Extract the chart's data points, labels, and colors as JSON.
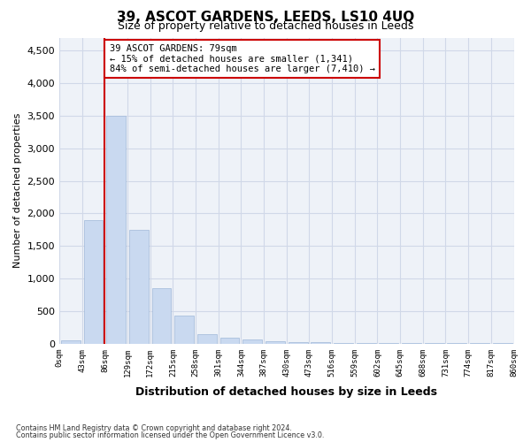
{
  "title": "39, ASCOT GARDENS, LEEDS, LS10 4UQ",
  "subtitle": "Size of property relative to detached houses in Leeds",
  "xlabel": "Distribution of detached houses by size in Leeds",
  "ylabel": "Number of detached properties",
  "footnote1": "Contains HM Land Registry data © Crown copyright and database right 2024.",
  "footnote2": "Contains public sector information licensed under the Open Government Licence v3.0.",
  "bar_color": "#c9d9f0",
  "bar_edge_color": "#a0b8d8",
  "grid_color": "#d0d8e8",
  "background_color": "#eef2f8",
  "vline_color": "#cc0000",
  "vline_position": 1.5,
  "annotation_text": "39 ASCOT GARDENS: 79sqm\n← 15% of detached houses are smaller (1,341)\n84% of semi-detached houses are larger (7,410) →",
  "annotation_box_color": "#ffffff",
  "annotation_box_edge": "#cc0000",
  "tick_labels": [
    "0sqm",
    "43sqm",
    "86sqm",
    "129sqm",
    "172sqm",
    "215sqm",
    "258sqm",
    "301sqm",
    "344sqm",
    "387sqm",
    "430sqm",
    "473sqm",
    "516sqm",
    "559sqm",
    "602sqm",
    "645sqm",
    "688sqm",
    "731sqm",
    "774sqm",
    "817sqm",
    "860sqm"
  ],
  "bar_heights": [
    50,
    1900,
    3500,
    1750,
    850,
    430,
    150,
    95,
    60,
    40,
    30,
    20,
    15,
    12,
    10,
    8,
    7,
    6,
    5,
    4
  ],
  "ylim": [
    0,
    4700
  ],
  "yticks": [
    0,
    500,
    1000,
    1500,
    2000,
    2500,
    3000,
    3500,
    4000,
    4500
  ]
}
